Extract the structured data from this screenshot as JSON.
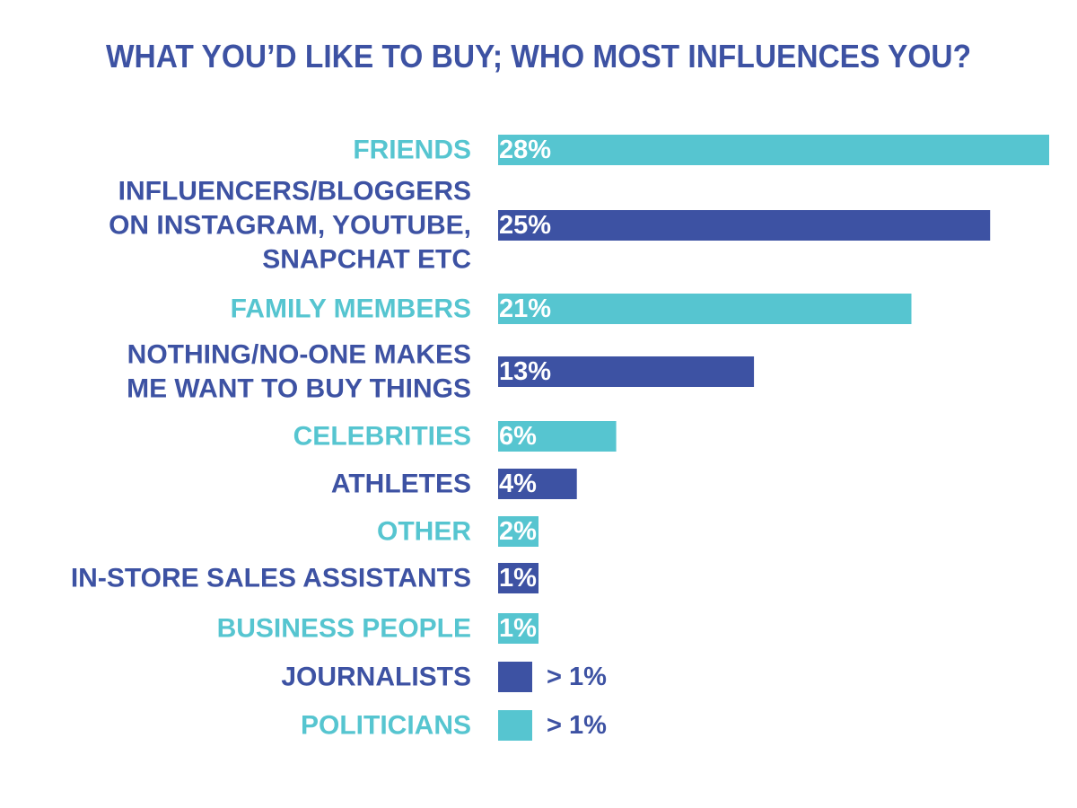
{
  "chart_data": {
    "type": "bar",
    "orientation": "horizontal",
    "title": "WHAT YOU’D LIKE TO BUY; WHO MOST INFLUENCES YOU?",
    "xlabel": "",
    "ylabel": "",
    "xlim": [
      0,
      28
    ],
    "grid": false,
    "legend": "none",
    "colors": {
      "light": "#56c5d0",
      "dark": "#3d52a3",
      "title": "#3d52a3"
    },
    "bars": [
      {
        "label_lines": [
          "FRIENDS"
        ],
        "value": 28,
        "value_label": "28%",
        "color": "light"
      },
      {
        "label_lines": [
          "INFLUENCERS/BLOGGERS",
          "ON INSTAGRAM, YOUTUBE,",
          "SNAPCHAT ETC"
        ],
        "value": 25,
        "value_label": "25%",
        "color": "dark"
      },
      {
        "label_lines": [
          "FAMILY MEMBERS"
        ],
        "value": 21,
        "value_label": "21%",
        "color": "light"
      },
      {
        "label_lines": [
          "NOTHING/NO-ONE MAKES",
          "ME WANT TO BUY THINGS"
        ],
        "value": 13,
        "value_label": "13%",
        "color": "dark"
      },
      {
        "label_lines": [
          "CELEBRITIES"
        ],
        "value": 6,
        "value_label": "6%",
        "color": "light"
      },
      {
        "label_lines": [
          "ATHLETES"
        ],
        "value": 4,
        "value_label": "4%",
        "color": "dark"
      },
      {
        "label_lines": [
          "OTHER"
        ],
        "value": 2,
        "value_label": "2%",
        "color": "light"
      },
      {
        "label_lines": [
          "IN-STORE SALES ASSISTANTS"
        ],
        "value": 1,
        "value_label": "1%",
        "color": "dark"
      },
      {
        "label_lines": [
          "BUSINESS PEOPLE"
        ],
        "value": 1,
        "value_label": "1%",
        "color": "light"
      },
      {
        "label_lines": [
          "JOURNALISTS"
        ],
        "value": 1,
        "value_label": "> 1%",
        "color": "dark"
      },
      {
        "label_lines": [
          "POLITICIANS"
        ],
        "value": 1,
        "value_label": "> 1%",
        "color": "light"
      }
    ]
  }
}
